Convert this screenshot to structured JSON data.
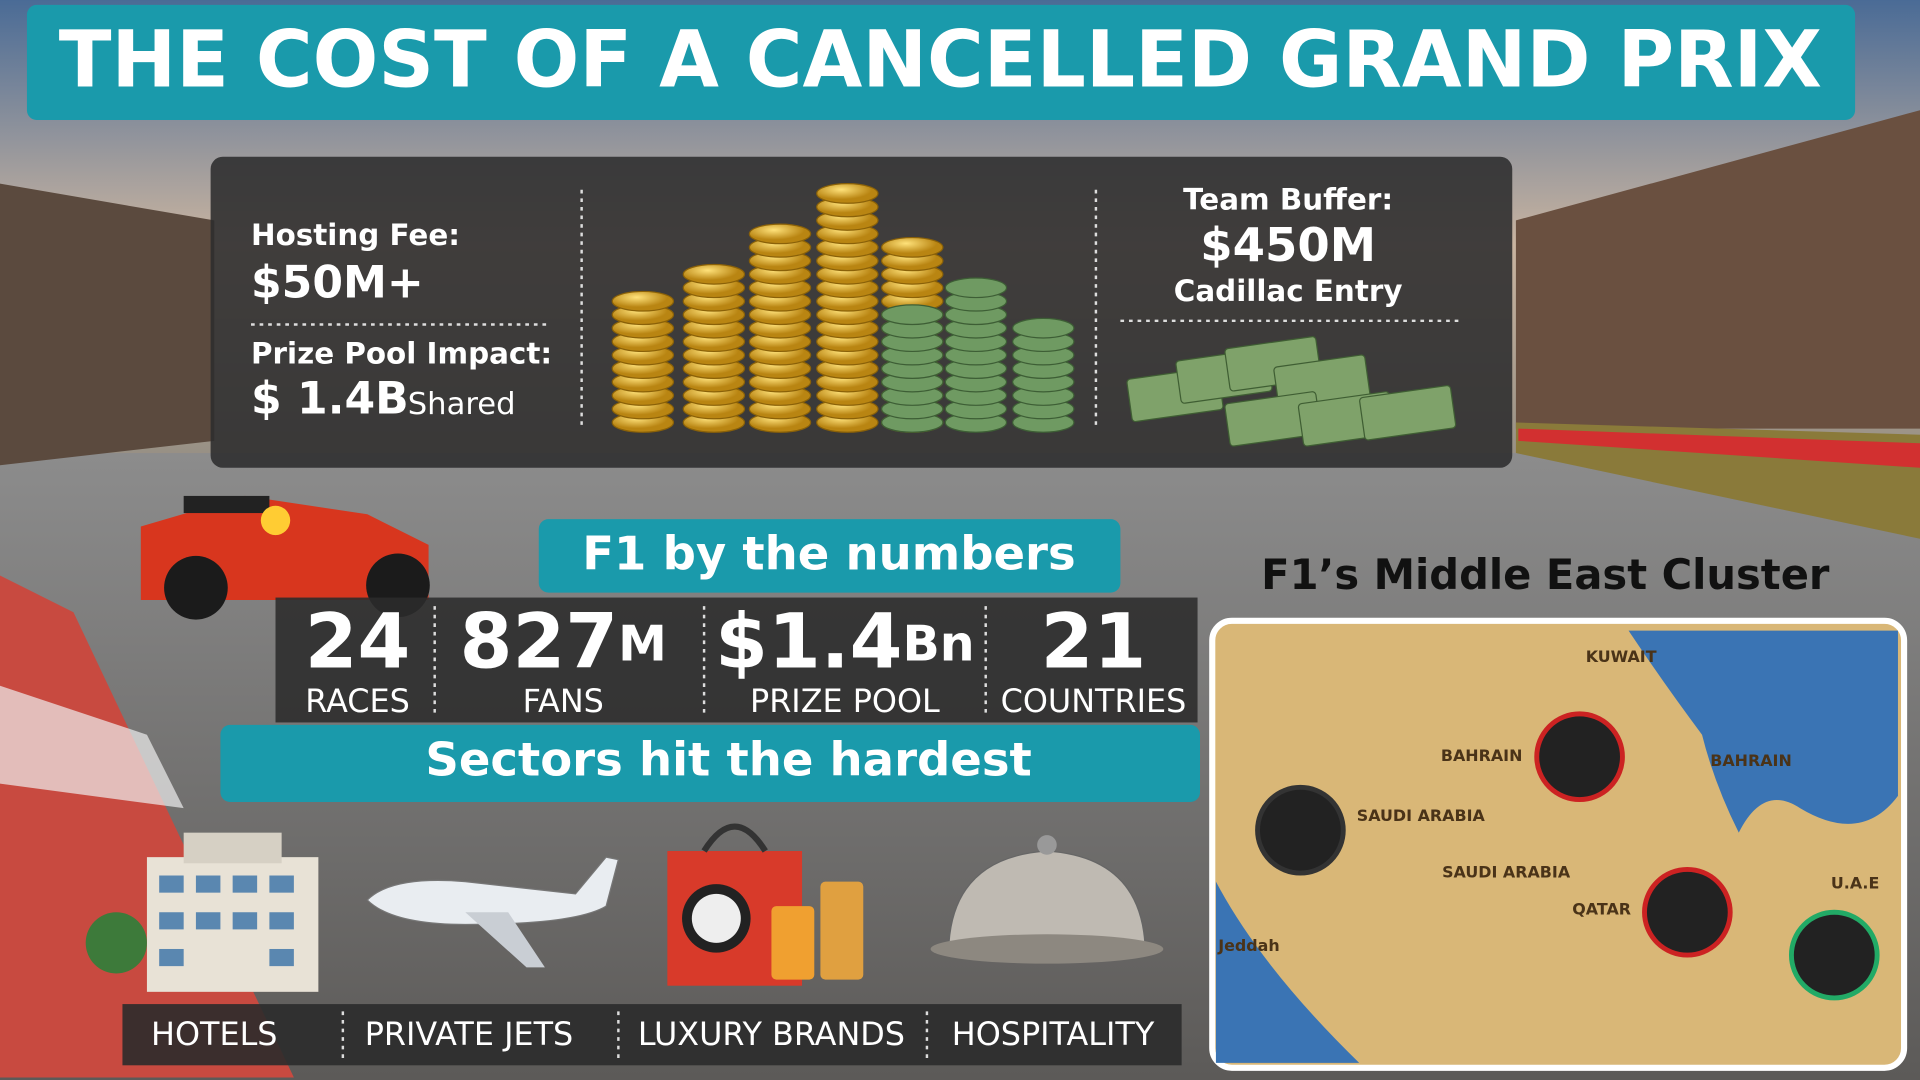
{
  "header": {
    "title": "THE COST OF A CANCELLED GRAND PRIX"
  },
  "costs": {
    "hosting_fee": {
      "label": "Hosting Fee:",
      "value": "$50M+"
    },
    "prize_pool": {
      "label": "Prize Pool Impact:",
      "value": "$ 1.4B",
      "note": "Shared"
    },
    "team_buffer": {
      "label": "Team Buffer:",
      "value": "$450M",
      "note": "Cadillac Entry"
    }
  },
  "numbers": {
    "title": "F1 by the numbers",
    "stats": [
      {
        "value": "24",
        "label": "RACES"
      },
      {
        "value": "827",
        "unit": "M",
        "label": "FANS"
      },
      {
        "value": "$1.4",
        "unit": "Bn",
        "label": "PRIZE POOL"
      },
      {
        "value": "21",
        "label": "COUNTRIES"
      }
    ]
  },
  "sectors": {
    "title": "Sectors hit the hardest",
    "items": [
      "HOTELS",
      "PRIVATE JETS",
      "LUXURY BRANDS",
      "HOSPITALITY"
    ]
  },
  "map": {
    "title": "F1’s Middle East Cluster",
    "labels": [
      "KUWAIT",
      "BAHRAIN",
      "BAHRAIN",
      "SAUDI ARABIA",
      "SAUDI ARABIA",
      "QATAR",
      "U.A.E",
      "Jeddah"
    ]
  }
}
